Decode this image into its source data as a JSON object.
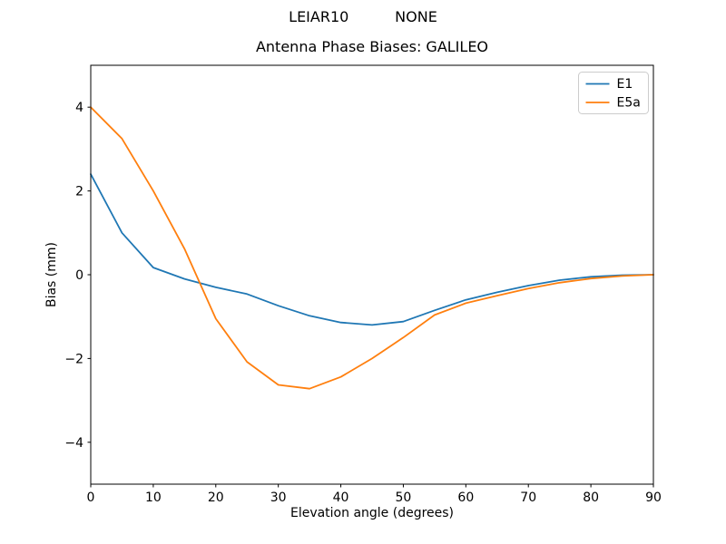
{
  "figure": {
    "suptitle": "LEIAR10          NONE",
    "background": "#ffffff"
  },
  "chart_data": {
    "type": "line",
    "title": "Antenna Phase Biases: GALILEO",
    "xlabel": "Elevation angle (degrees)",
    "ylabel": "Bias (mm)",
    "xlim": [
      0,
      90
    ],
    "ylim": [
      -5,
      5
    ],
    "xticks": [
      0,
      10,
      20,
      30,
      40,
      50,
      60,
      70,
      80,
      90
    ],
    "yticks": [
      -4,
      -2,
      0,
      2,
      4
    ],
    "grid": false,
    "legend_position": "upper right",
    "x": [
      0,
      5,
      10,
      15,
      20,
      25,
      30,
      35,
      40,
      45,
      50,
      55,
      60,
      65,
      70,
      75,
      80,
      85,
      90
    ],
    "series": [
      {
        "name": "E1",
        "color": "#1f77b4",
        "values": [
          2.4,
          1.0,
          0.17,
          -0.1,
          -0.3,
          -0.46,
          -0.74,
          -0.98,
          -1.14,
          -1.2,
          -1.12,
          -0.85,
          -0.6,
          -0.42,
          -0.26,
          -0.13,
          -0.05,
          -0.01,
          0.0
        ]
      },
      {
        "name": "E5a",
        "color": "#ff7f0e",
        "values": [
          4.0,
          3.25,
          2.0,
          0.62,
          -1.05,
          -2.08,
          -2.63,
          -2.72,
          -2.44,
          -2.0,
          -1.5,
          -0.96,
          -0.68,
          -0.5,
          -0.33,
          -0.19,
          -0.09,
          -0.03,
          0.0
        ]
      }
    ],
    "frame_color": "#000000",
    "tick_label_color": "#000000"
  }
}
